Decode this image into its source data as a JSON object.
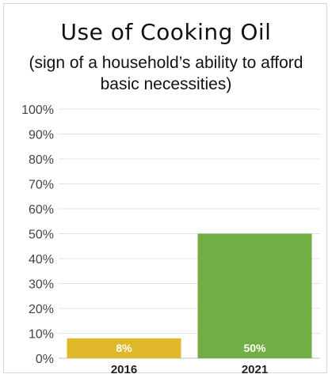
{
  "chart_data": {
    "type": "bar",
    "title": "Use of Cooking Oil",
    "subtitle": "(sign of a household’s ability to afford basic necessities)",
    "categories": [
      "2016",
      "2021"
    ],
    "values": [
      8,
      50
    ],
    "data_labels": [
      "8%",
      "50%"
    ],
    "colors": [
      "#e0b82a",
      "#71ae43"
    ],
    "ylim": [
      0,
      100
    ],
    "yticks": [
      "0%",
      "10%",
      "20%",
      "30%",
      "40%",
      "50%",
      "60%",
      "70%",
      "80%",
      "90%",
      "100%"
    ],
    "grid": true,
    "legend": "none"
  }
}
